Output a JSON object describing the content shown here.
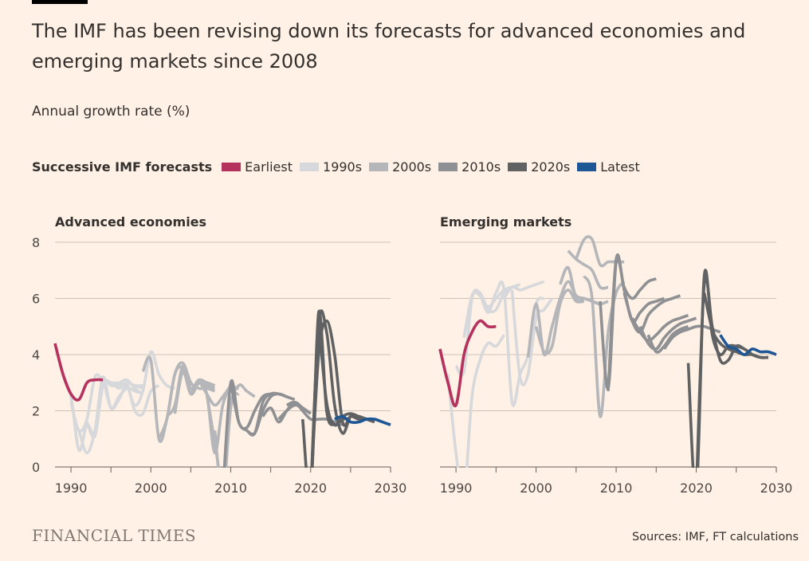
{
  "title": "The IMF has been revising down its forecasts for advanced economies and emerging markets since 2008",
  "subtitle": "Annual growth rate (%)",
  "legend": {
    "title": "Successive IMF forecasts",
    "items": [
      {
        "label": "Earliest",
        "color": "#b5325f"
      },
      {
        "label": "1990s",
        "color": "#d6d8db"
      },
      {
        "label": "2000s",
        "color": "#b4b6b9"
      },
      {
        "label": "2010s",
        "color": "#8e9093"
      },
      {
        "label": "2020s",
        "color": "#5f6163"
      },
      {
        "label": "Latest",
        "color": "#1d5795"
      }
    ]
  },
  "footer": {
    "brand": "FINANCIAL TIMES",
    "source": "Sources: IMF, FT calculations"
  },
  "chart_data": [
    {
      "type": "line",
      "title": "Advanced economies",
      "xlim": [
        1988,
        2030
      ],
      "ylim": [
        0,
        8
      ],
      "xticks": [
        "1990",
        "2000",
        "2010",
        "2020",
        "2030"
      ],
      "yticks": [
        "0",
        "2",
        "4",
        "6",
        "8"
      ],
      "grid": "horizontal",
      "series": [
        {
          "group": "1990s",
          "start": 1989,
          "values": [
            3.3,
            2.5,
            0.6,
            1.5,
            1.2,
            3.0,
            2.9,
            2.9,
            3.0,
            2.9,
            2.8
          ]
        },
        {
          "group": "1990s",
          "start": 1990,
          "values": [
            2.3,
            1.3,
            1.7,
            3.2,
            3.1,
            3.0,
            3.0,
            3.1,
            2.8,
            2.6
          ]
        },
        {
          "group": "1990s",
          "start": 1991,
          "values": [
            1.3,
            0.5,
            1.3,
            3.2,
            2.1,
            2.5,
            2.8,
            2.7,
            2.6
          ]
        },
        {
          "group": "1990s",
          "start": 1992,
          "values": [
            1.6,
            1.1,
            2.9,
            3.0,
            2.8,
            3.0,
            2.9,
            2.9
          ]
        },
        {
          "group": "1990s",
          "start": 1994,
          "values": [
            3.2,
            2.1,
            2.4,
            2.9,
            2.0,
            1.9,
            2.7,
            2.9
          ]
        },
        {
          "group": "1990s",
          "start": 1997,
          "values": [
            3.0,
            2.2,
            2.7,
            4.1,
            3.3,
            2.9,
            2.8
          ]
        },
        {
          "group": "Earliest",
          "start": 1988,
          "values": [
            4.4,
            3.3,
            2.6,
            2.4,
            3.0,
            3.1,
            3.1
          ]
        },
        {
          "group": "2000s",
          "start": 1999,
          "values": [
            3.4,
            3.8,
            1.0,
            1.7,
            3.3,
            3.5,
            2.6,
            3.0,
            3.0,
            2.9
          ]
        },
        {
          "group": "2000s",
          "start": 2001,
          "values": [
            1.0,
            1.7,
            3.3,
            3.7,
            3.0,
            2.8,
            2.8,
            2.7
          ]
        },
        {
          "group": "2000s",
          "start": 2002,
          "values": [
            1.8,
            2.2,
            3.6,
            2.8,
            3.1,
            3.0,
            2.9
          ]
        },
        {
          "group": "2000s",
          "start": 2003,
          "values": [
            1.9,
            3.4,
            2.6,
            3.0,
            2.9,
            2.8
          ]
        },
        {
          "group": "2000s",
          "start": 2005,
          "values": [
            2.6,
            3.0,
            2.6,
            2.2,
            2.5,
            2.9
          ]
        },
        {
          "group": "2000s",
          "start": 2006,
          "values": [
            3.0,
            2.6,
            0.5,
            2.2,
            2.8,
            2.8
          ]
        },
        {
          "group": "2000s",
          "start": 2007,
          "values": [
            2.6,
            0.9,
            -0.5,
            2.3,
            2.6
          ]
        },
        {
          "group": "2000s",
          "start": 2008,
          "values": [
            1.3,
            -1.0,
            2.1,
            2.9,
            2.7,
            2.5
          ]
        },
        {
          "group": "2010s",
          "start": 2009,
          "values": [
            -1.0,
            3.0,
            1.6,
            1.4,
            2.0,
            2.5,
            2.6,
            2.6
          ]
        },
        {
          "group": "2010s",
          "start": 2010,
          "values": [
            3.0,
            1.6,
            1.3,
            1.2,
            2.3,
            2.6,
            2.6,
            2.5
          ]
        },
        {
          "group": "2010s",
          "start": 2012,
          "values": [
            1.3,
            1.2,
            2.0,
            2.5,
            2.6,
            2.5,
            2.4
          ]
        },
        {
          "group": "2010s",
          "start": 2014,
          "values": [
            1.8,
            2.1,
            1.6,
            2.0,
            2.3,
            2.1,
            1.9
          ]
        },
        {
          "group": "2010s",
          "start": 2016,
          "values": [
            1.7,
            2.0,
            2.2,
            2.1,
            1.9
          ]
        },
        {
          "group": "2010s",
          "start": 2017,
          "values": [
            2.2,
            2.3,
            2.0,
            1.7,
            1.7,
            1.7,
            1.6,
            1.5
          ]
        },
        {
          "group": "2020s",
          "start": 2019,
          "values": [
            1.7,
            -1.0,
            5.5,
            2.0,
            1.5,
            1.7,
            1.7
          ]
        },
        {
          "group": "2020s",
          "start": 2020,
          "values": [
            -1.0,
            4.0,
            5.2,
            4.0,
            1.6,
            1.8,
            1.7,
            1.7
          ]
        },
        {
          "group": "2020s",
          "start": 2020,
          "values": [
            -1.0,
            5.1,
            4.8,
            2.2,
            1.2,
            1.8,
            1.8,
            1.7,
            1.6
          ]
        },
        {
          "group": "2020s",
          "start": 2021,
          "values": [
            5.2,
            2.3,
            1.5,
            1.8,
            1.9,
            1.8,
            1.7
          ]
        },
        {
          "group": "Latest",
          "start": 2023,
          "values": [
            1.7,
            1.8,
            1.6,
            1.6,
            1.7,
            1.7,
            1.6,
            1.5
          ]
        }
      ]
    },
    {
      "type": "line",
      "title": "Emerging markets",
      "xlim": [
        1988,
        2030
      ],
      "ylim": [
        0,
        8
      ],
      "xticks": [
        "1990",
        "2000",
        "2010",
        "2020",
        "2030"
      ],
      "yticks": [
        "0",
        "2",
        "4",
        "6",
        "8"
      ],
      "grid": "horizontal",
      "series": [
        {
          "group": "1990s",
          "start": 1989,
          "values": [
            3.3,
            0.5,
            -1.0,
            2.5,
            3.8,
            4.4,
            4.3,
            4.7
          ]
        },
        {
          "group": "1990s",
          "start": 1990,
          "values": [
            3.6,
            3.4,
            6.0,
            6.2,
            5.6,
            5.6,
            6.2,
            6.4,
            6.3
          ]
        },
        {
          "group": "1990s",
          "start": 1991,
          "values": [
            4.6,
            6.1,
            6.1,
            5.7,
            6.0,
            6.3,
            6.4,
            6.5
          ]
        },
        {
          "group": "1990s",
          "start": 1993,
          "values": [
            6.2,
            5.5,
            6.2,
            6.3,
            2.3,
            3.3,
            4.0,
            5.8,
            6.0
          ]
        },
        {
          "group": "1990s",
          "start": 1996,
          "values": [
            6.0,
            6.4,
            6.3,
            6.4,
            6.5,
            6.6
          ]
        },
        {
          "group": "1990s",
          "start": 1997,
          "values": [
            6.3,
            3.2,
            3.3,
            5.3,
            5.6,
            6.0
          ]
        },
        {
          "group": "Earliest",
          "start": 1988,
          "values": [
            4.2,
            3.0,
            2.2,
            4.0,
            4.8,
            5.2,
            5.0,
            5.0
          ]
        },
        {
          "group": "2000s",
          "start": 1999,
          "values": [
            3.9,
            5.8,
            4.0,
            5.0,
            6.0,
            6.6,
            6.1,
            6.0,
            5.9,
            5.8,
            5.9
          ]
        },
        {
          "group": "2000s",
          "start": 2000,
          "values": [
            5.0,
            4.1,
            4.3,
            5.8,
            6.3,
            5.9,
            5.9
          ]
        },
        {
          "group": "2000s",
          "start": 2003,
          "values": [
            6.5,
            7.1,
            6.0,
            6.0,
            5.9,
            5.8
          ]
        },
        {
          "group": "2000s",
          "start": 2004,
          "values": [
            7.7,
            7.4,
            7.2,
            7.0,
            6.4,
            6.4
          ]
        },
        {
          "group": "2000s",
          "start": 2005,
          "values": [
            7.4,
            8.1,
            8.1,
            7.2,
            7.3,
            7.3,
            7.3
          ]
        },
        {
          "group": "2000s",
          "start": 2006,
          "values": [
            6.8,
            6.0,
            1.8,
            4.8,
            6.2,
            6.6
          ]
        },
        {
          "group": "2010s",
          "start": 2008,
          "values": [
            5.9,
            2.8,
            7.3,
            6.4,
            6.0,
            6.3,
            6.6,
            6.7
          ]
        },
        {
          "group": "2010s",
          "start": 2009,
          "values": [
            2.7,
            7.4,
            6.3,
            5.2,
            5.5,
            5.8,
            5.9,
            6.0
          ]
        },
        {
          "group": "2010s",
          "start": 2011,
          "values": [
            6.2,
            5.2,
            4.8,
            5.4,
            5.7,
            5.9,
            6.0,
            6.1
          ]
        },
        {
          "group": "2010s",
          "start": 2012,
          "values": [
            5.3,
            4.8,
            4.5,
            4.7,
            5.0,
            5.2,
            5.3,
            5.4
          ]
        },
        {
          "group": "2010s",
          "start": 2013,
          "values": [
            5.0,
            4.4,
            4.2,
            4.6,
            4.9,
            5.1,
            5.2,
            5.3
          ]
        },
        {
          "group": "2010s",
          "start": 2014,
          "values": [
            4.7,
            4.1,
            4.3,
            4.7,
            4.9,
            5.0
          ]
        },
        {
          "group": "2010s",
          "start": 2016,
          "values": [
            4.2,
            4.6,
            4.8,
            4.9,
            5.0,
            5.0,
            4.9,
            4.8
          ]
        },
        {
          "group": "2020s",
          "start": 2019,
          "values": [
            3.7,
            -1.0,
            6.8,
            4.7,
            4.0,
            4.3,
            4.3,
            4.2,
            4.0
          ]
        },
        {
          "group": "2020s",
          "start": 2020,
          "values": [
            -1.0,
            6.5,
            5.0,
            3.8,
            3.8,
            4.3,
            4.2,
            4.0,
            3.9,
            3.9
          ]
        },
        {
          "group": "2020s",
          "start": 2021,
          "values": [
            6.2,
            4.9,
            4.4,
            4.2,
            4.1,
            4.0,
            4.0,
            3.9,
            3.9
          ]
        },
        {
          "group": "Latest",
          "start": 2023,
          "values": [
            4.7,
            4.3,
            4.2,
            4.0,
            4.2,
            4.1,
            4.1,
            4.0
          ]
        }
      ]
    }
  ]
}
